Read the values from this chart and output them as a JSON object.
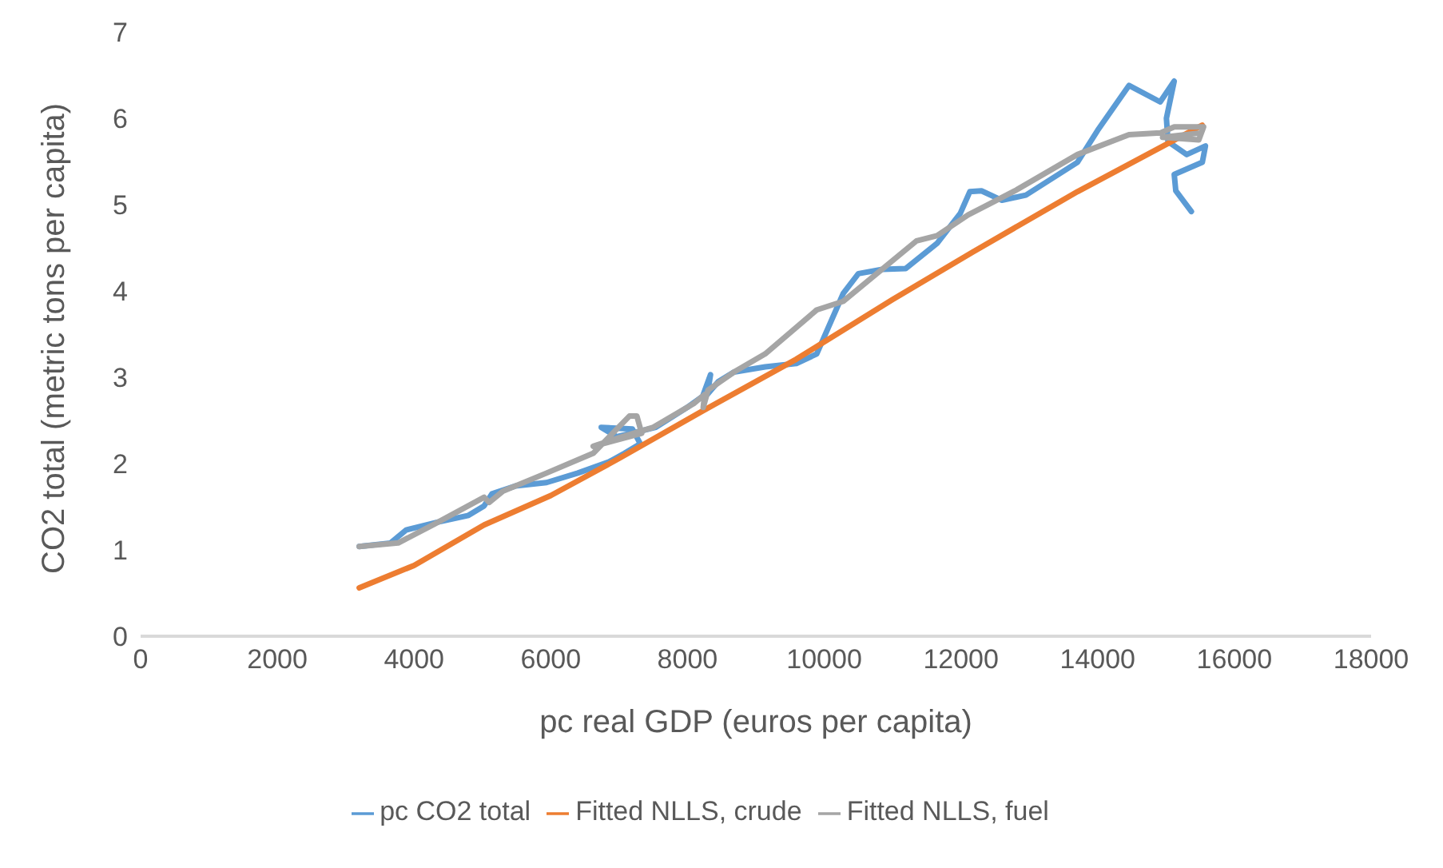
{
  "chart_data": {
    "type": "line",
    "xlabel": "pc real GDP (euros per capita)",
    "ylabel": "CO2 total (metric tons per capita)",
    "xlim": [
      0,
      18000
    ],
    "xticks": [
      0,
      2000,
      4000,
      6000,
      8000,
      10000,
      12000,
      14000,
      16000,
      18000
    ],
    "ylim": [
      0,
      7
    ],
    "yticks": [
      0,
      1,
      2,
      3,
      4,
      5,
      6,
      7
    ],
    "grid": false,
    "legend": "bottom",
    "marker": "none",
    "line_style": "solid",
    "series": [
      {
        "name": "pc CO2 total",
        "color": "#5b9bd5",
        "x": [
          3198,
          3654,
          3883,
          4340,
          4796,
          5025,
          5139,
          5482,
          5938,
          6395,
          6852,
          7080,
          7309,
          7195,
          6738,
          6966,
          7537,
          7994,
          8222,
          8337,
          8290,
          8450,
          8679,
          9136,
          9593,
          9890,
          10278,
          10500,
          10850,
          11192,
          11650,
          11991,
          12130,
          12300,
          12600,
          12950,
          13704,
          14000,
          14458,
          14915,
          15120,
          15006,
          15029,
          15303,
          15577,
          15531,
          15120,
          15143,
          15371
        ],
        "values": [
          1.04,
          1.08,
          1.23,
          1.32,
          1.4,
          1.51,
          1.65,
          1.74,
          1.78,
          1.89,
          2.02,
          2.12,
          2.23,
          2.4,
          2.42,
          2.31,
          2.42,
          2.65,
          2.78,
          3.03,
          2.8,
          2.95,
          3.06,
          3.12,
          3.16,
          3.27,
          3.97,
          4.2,
          4.25,
          4.26,
          4.55,
          4.9,
          5.15,
          5.16,
          5.05,
          5.11,
          5.49,
          5.86,
          6.38,
          6.19,
          6.43,
          6,
          5.73,
          5.58,
          5.68,
          5.49,
          5.35,
          5.16,
          4.92
        ]
      },
      {
        "name": "Fitted NLLS, crude",
        "color": "#ed7d31",
        "x": [
          3198,
          4000,
          5025,
          6000,
          7000,
          8222,
          9593,
          11000,
          12170,
          13704,
          15530
        ],
        "values": [
          0.56,
          0.82,
          1.29,
          1.63,
          2.06,
          2.61,
          3.21,
          3.9,
          4.45,
          5.15,
          5.92
        ]
      },
      {
        "name": "Fitted NLLS, fuel",
        "color": "#a5a5a5",
        "x": [
          3198,
          3768,
          4300,
          5025,
          5100,
          5300,
          5938,
          6623,
          7150,
          7260,
          7330,
          6620,
          7000,
          7500,
          8100,
          8250,
          8230,
          8300,
          8679,
          9136,
          9890,
          10278,
          11350,
          11650,
          12105,
          12790,
          13704,
          14458,
          14915,
          15120,
          15550,
          15480,
          14950,
          15500
        ],
        "values": [
          1.04,
          1.08,
          1.3,
          1.61,
          1.55,
          1.68,
          1.89,
          2.12,
          2.55,
          2.55,
          2.35,
          2.2,
          2.3,
          2.42,
          2.7,
          2.8,
          2.65,
          2.85,
          3.06,
          3.27,
          3.78,
          3.88,
          4.58,
          4.64,
          4.88,
          5.16,
          5.58,
          5.81,
          5.83,
          5.9,
          5.9,
          5.75,
          5.78,
          5.83
        ]
      }
    ]
  }
}
